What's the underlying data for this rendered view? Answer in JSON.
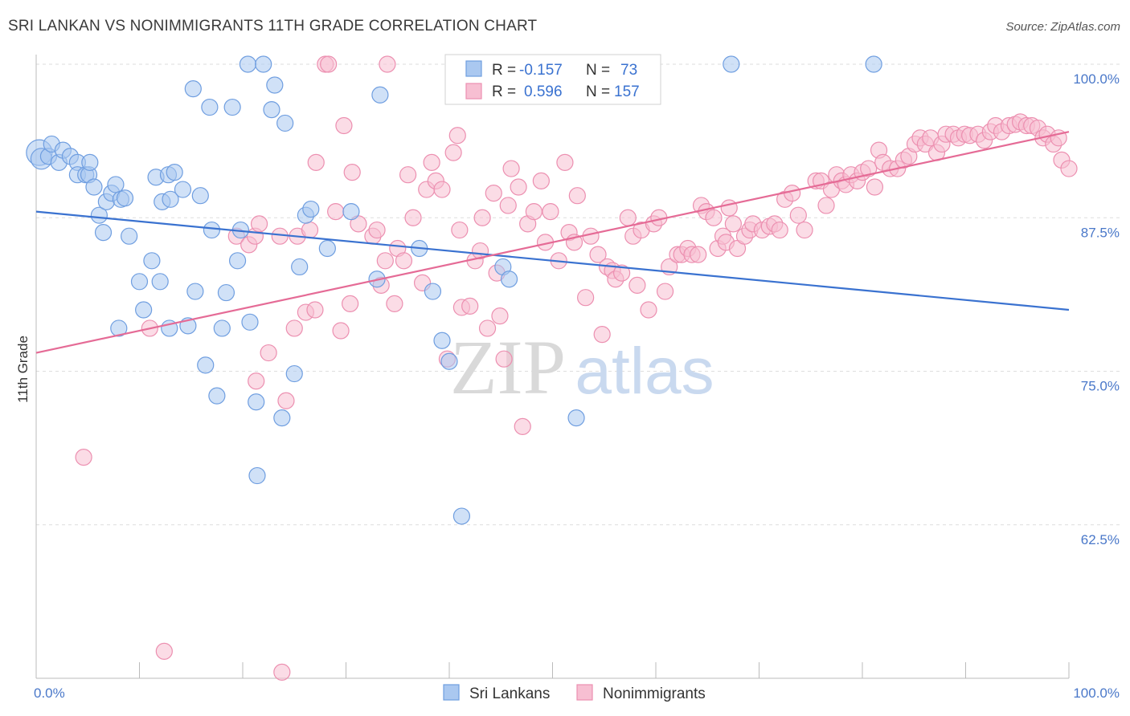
{
  "title": "SRI LANKAN VS NONIMMIGRANTS 11TH GRADE CORRELATION CHART",
  "source": "Source: ZipAtlas.com",
  "watermark": {
    "zip": "ZIP",
    "atlas": "atlas"
  },
  "legend": {
    "rows": [
      {
        "r_label": "R = ",
        "r_value": "-0.157",
        "n_label": "N = ",
        "n_value": "73"
      },
      {
        "r_label": "R = ",
        "r_value": "0.596",
        "n_label": "N = ",
        "n_value": "157"
      }
    ]
  },
  "colors": {
    "blue_fill": "#aac8f0",
    "blue_stroke": "#6f9ee0",
    "blue_line": "#3a72d0",
    "pink_fill": "#f7bfd2",
    "pink_stroke": "#ec8fb0",
    "pink_line": "#e56b96",
    "value_text": "#3a72d0",
    "grid": "#dddddd"
  },
  "chart_data": {
    "type": "scatter",
    "xlabel": "",
    "ylabel": "11th Grade",
    "xlim": [
      0,
      100
    ],
    "ylim": [
      50,
      100
    ],
    "x_tick_labels": [
      {
        "value": 0,
        "label": "0.0%"
      },
      {
        "value": 100,
        "label": "100.0%"
      }
    ],
    "y_tick_labels": [
      {
        "value": 100,
        "label": "100.0%"
      },
      {
        "value": 87.5,
        "label": "87.5%"
      },
      {
        "value": 75,
        "label": "75.0%"
      },
      {
        "value": 62.5,
        "label": "62.5%"
      }
    ],
    "grid": true,
    "legend_position": "top-center",
    "series": [
      {
        "name": "Sri Lankans",
        "r": -0.157,
        "n": 73,
        "trend": {
          "x": [
            0,
            100
          ],
          "y": [
            88.0,
            80.0
          ]
        },
        "points": [
          [
            0.3,
            92.8,
            16
          ],
          [
            0.5,
            92.3,
            13
          ],
          [
            1.2,
            92.5,
            10
          ],
          [
            1.5,
            93.5,
            10
          ],
          [
            2.2,
            92.0,
            10
          ],
          [
            2.6,
            93.0,
            10
          ],
          [
            3.3,
            92.5,
            10
          ],
          [
            4.0,
            92.0,
            10
          ],
          [
            4.0,
            91.0,
            10
          ],
          [
            4.8,
            91.0,
            10
          ],
          [
            5.1,
            91.0,
            10
          ],
          [
            5.2,
            92.0,
            10
          ],
          [
            5.6,
            90.0,
            10
          ],
          [
            6.1,
            87.7,
            10
          ],
          [
            6.5,
            86.3,
            10
          ],
          [
            6.8,
            88.8,
            10
          ],
          [
            7.3,
            89.5,
            10
          ],
          [
            7.7,
            90.2,
            10
          ],
          [
            8.2,
            89.0,
            10
          ],
          [
            8.6,
            89.1,
            10
          ],
          [
            9.0,
            86.0,
            10
          ],
          [
            8.0,
            78.5,
            10
          ],
          [
            10.0,
            82.3,
            10
          ],
          [
            10.4,
            80.0,
            10
          ],
          [
            11.2,
            84.0,
            10
          ],
          [
            11.6,
            90.8,
            10
          ],
          [
            12.0,
            82.3,
            10
          ],
          [
            12.2,
            88.8,
            10
          ],
          [
            13.0,
            89.0,
            10
          ],
          [
            12.8,
            91.0,
            10
          ],
          [
            12.9,
            78.5,
            10
          ],
          [
            13.4,
            91.2,
            10
          ],
          [
            14.2,
            89.8,
            10
          ],
          [
            14.7,
            78.7,
            10
          ],
          [
            15.2,
            98.0,
            10
          ],
          [
            15.4,
            81.5,
            10
          ],
          [
            15.9,
            89.3,
            10
          ],
          [
            16.4,
            75.5,
            10
          ],
          [
            16.8,
            96.5,
            10
          ],
          [
            17.0,
            86.5,
            10
          ],
          [
            17.5,
            73.0,
            10
          ],
          [
            18.0,
            78.5,
            10
          ],
          [
            18.4,
            81.4,
            10
          ],
          [
            19.0,
            96.5,
            10
          ],
          [
            19.5,
            84.0,
            10
          ],
          [
            19.8,
            86.5,
            10
          ],
          [
            20.5,
            100.0,
            10
          ],
          [
            20.7,
            79.0,
            10
          ],
          [
            21.3,
            72.5,
            10
          ],
          [
            21.4,
            66.5,
            10
          ],
          [
            22.0,
            100.0,
            10
          ],
          [
            22.8,
            96.3,
            10
          ],
          [
            23.1,
            98.3,
            10
          ],
          [
            23.8,
            71.2,
            10
          ],
          [
            24.1,
            95.2,
            10
          ],
          [
            25.0,
            74.8,
            10
          ],
          [
            25.5,
            83.5,
            10
          ],
          [
            26.1,
            87.7,
            10
          ],
          [
            26.6,
            88.2,
            10
          ],
          [
            28.2,
            85.0,
            10
          ],
          [
            30.5,
            88.0,
            10
          ],
          [
            33.0,
            82.5,
            10
          ],
          [
            33.3,
            97.5,
            10
          ],
          [
            37.1,
            85.0,
            10
          ],
          [
            38.4,
            81.5,
            10
          ],
          [
            39.3,
            77.5,
            10
          ],
          [
            40.0,
            75.8,
            10
          ],
          [
            41.2,
            63.2,
            10
          ],
          [
            45.2,
            83.5,
            10
          ],
          [
            45.8,
            82.5,
            10
          ],
          [
            52.3,
            71.2,
            10
          ],
          [
            67.3,
            100.0,
            10
          ],
          [
            81.1,
            100.0,
            10
          ]
        ]
      },
      {
        "name": "Nonimmigrants",
        "r": 0.596,
        "n": 157,
        "trend": {
          "x": [
            0,
            100
          ],
          "y": [
            76.5,
            94.5
          ]
        },
        "points": [
          [
            4.6,
            68.0
          ],
          [
            11.0,
            78.5
          ],
          [
            12.4,
            52.2
          ],
          [
            19.4,
            86.0
          ],
          [
            20.6,
            85.3
          ],
          [
            21.2,
            86.0
          ],
          [
            21.3,
            74.2
          ],
          [
            21.6,
            87.0
          ],
          [
            22.5,
            76.5
          ],
          [
            23.6,
            86.0
          ],
          [
            23.8,
            50.5
          ],
          [
            24.2,
            72.6
          ],
          [
            25.0,
            78.5
          ],
          [
            25.3,
            86.0
          ],
          [
            26.1,
            79.8
          ],
          [
            26.5,
            86.5
          ],
          [
            27.0,
            80.0
          ],
          [
            27.1,
            92.0
          ],
          [
            28.0,
            100.0
          ],
          [
            28.3,
            100.0
          ],
          [
            29.0,
            88.0
          ],
          [
            29.5,
            78.3
          ],
          [
            29.8,
            95.0
          ],
          [
            30.4,
            80.5
          ],
          [
            30.6,
            91.2
          ],
          [
            31.2,
            87.0
          ],
          [
            32.6,
            86.0
          ],
          [
            33.0,
            86.5
          ],
          [
            33.4,
            82.0
          ],
          [
            33.8,
            84.0
          ],
          [
            34.0,
            100.0
          ],
          [
            34.7,
            80.5
          ],
          [
            35.0,
            85.0
          ],
          [
            35.6,
            84.0
          ],
          [
            36.0,
            91.0
          ],
          [
            36.5,
            87.5
          ],
          [
            37.4,
            82.2
          ],
          [
            37.8,
            89.8
          ],
          [
            38.3,
            92.0
          ],
          [
            38.7,
            90.5
          ],
          [
            39.3,
            89.8
          ],
          [
            39.8,
            76.0
          ],
          [
            40.4,
            92.8
          ],
          [
            40.8,
            94.2
          ],
          [
            41.0,
            86.5
          ],
          [
            41.2,
            80.2
          ],
          [
            42.0,
            80.3
          ],
          [
            42.5,
            84.0
          ],
          [
            43.0,
            84.8
          ],
          [
            43.2,
            87.5
          ],
          [
            43.7,
            78.5
          ],
          [
            44.3,
            89.5
          ],
          [
            44.6,
            83.0
          ],
          [
            44.9,
            79.5
          ],
          [
            45.3,
            76.0
          ],
          [
            45.7,
            88.5
          ],
          [
            46.0,
            91.5
          ],
          [
            46.7,
            90.0
          ],
          [
            47.1,
            70.5
          ],
          [
            47.6,
            87.0
          ],
          [
            48.2,
            88.0
          ],
          [
            48.9,
            90.5
          ],
          [
            49.3,
            85.5
          ],
          [
            49.8,
            88.0
          ],
          [
            50.6,
            84.0
          ],
          [
            51.2,
            92.0
          ],
          [
            51.6,
            86.3
          ],
          [
            52.1,
            85.5
          ],
          [
            52.4,
            89.3
          ],
          [
            53.2,
            81.0
          ],
          [
            53.7,
            86.0
          ],
          [
            54.4,
            84.5
          ],
          [
            54.8,
            78.0
          ],
          [
            55.3,
            83.5
          ],
          [
            55.8,
            83.2
          ],
          [
            56.1,
            82.5
          ],
          [
            56.7,
            83.0
          ],
          [
            57.3,
            87.5
          ],
          [
            57.8,
            86.0
          ],
          [
            58.2,
            82.0
          ],
          [
            58.6,
            86.5
          ],
          [
            59.3,
            80.0
          ],
          [
            59.8,
            87.0
          ],
          [
            60.3,
            87.5
          ],
          [
            60.9,
            81.5
          ],
          [
            61.3,
            83.5
          ],
          [
            62.1,
            84.5
          ],
          [
            62.5,
            84.5
          ],
          [
            63.1,
            85.0
          ],
          [
            63.5,
            84.5
          ],
          [
            64.1,
            84.5
          ],
          [
            64.4,
            88.5
          ],
          [
            64.9,
            88.0
          ],
          [
            65.6,
            87.5
          ],
          [
            66.0,
            85.0
          ],
          [
            66.5,
            86.0
          ],
          [
            66.8,
            85.5
          ],
          [
            67.1,
            88.3
          ],
          [
            67.5,
            87.0
          ],
          [
            67.9,
            85.0
          ],
          [
            68.6,
            86.0
          ],
          [
            69.1,
            86.5
          ],
          [
            69.4,
            87.0
          ],
          [
            70.3,
            86.5
          ],
          [
            71.0,
            86.8
          ],
          [
            71.5,
            87.0
          ],
          [
            72.0,
            86.5
          ],
          [
            72.5,
            89.0
          ],
          [
            73.2,
            89.5
          ],
          [
            73.8,
            87.7
          ],
          [
            74.4,
            86.5
          ],
          [
            75.5,
            90.5
          ],
          [
            76.0,
            90.5
          ],
          [
            76.5,
            88.5
          ],
          [
            77.0,
            89.8
          ],
          [
            77.5,
            91.0
          ],
          [
            78.0,
            90.5
          ],
          [
            78.4,
            90.2
          ],
          [
            78.9,
            91.0
          ],
          [
            79.5,
            90.5
          ],
          [
            80.0,
            91.2
          ],
          [
            80.6,
            91.5
          ],
          [
            81.2,
            90.0
          ],
          [
            81.6,
            93.0
          ],
          [
            82.0,
            92.0
          ],
          [
            82.7,
            91.5
          ],
          [
            83.4,
            91.5
          ],
          [
            84.0,
            92.2
          ],
          [
            84.5,
            92.5
          ],
          [
            85.1,
            93.5
          ],
          [
            85.6,
            94.0
          ],
          [
            86.1,
            93.5
          ],
          [
            86.6,
            94.0
          ],
          [
            87.2,
            92.8
          ],
          [
            87.7,
            93.5
          ],
          [
            88.1,
            94.3
          ],
          [
            88.8,
            94.3
          ],
          [
            89.3,
            94.0
          ],
          [
            89.9,
            94.3
          ],
          [
            90.4,
            94.2
          ],
          [
            91.2,
            94.3
          ],
          [
            91.8,
            93.8
          ],
          [
            92.4,
            94.5
          ],
          [
            92.9,
            95.0
          ],
          [
            93.5,
            94.5
          ],
          [
            94.2,
            95.0
          ],
          [
            94.8,
            95.1
          ],
          [
            95.3,
            95.3
          ],
          [
            95.9,
            95.0
          ],
          [
            96.4,
            95.0
          ],
          [
            97.0,
            94.8
          ],
          [
            97.5,
            94.0
          ],
          [
            97.9,
            94.3
          ],
          [
            98.5,
            93.5
          ],
          [
            99.0,
            94.0
          ],
          [
            99.3,
            92.2
          ],
          [
            100.0,
            91.5
          ]
        ]
      }
    ]
  }
}
